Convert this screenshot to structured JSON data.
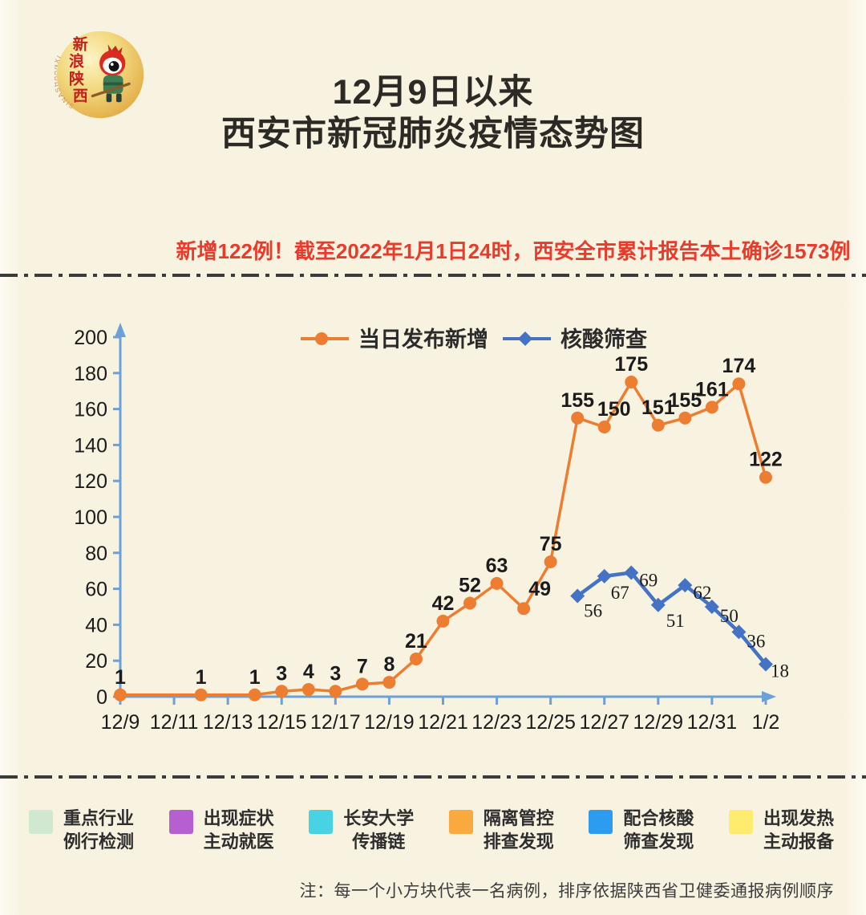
{
  "logo": {
    "name_cn": "新浪陕西",
    "name_en": "SINASHAANXI"
  },
  "header": {
    "title_line1": "12月9日以来",
    "title_line2": "西安市新冠肺炎疫情态势图",
    "subtitle": "新增122例！截至2022年1月1日24时，西安全市累计报告本土确诊1573例"
  },
  "chart_data": {
    "type": "line",
    "title": "",
    "xlabel": "",
    "ylabel": "",
    "ylim": [
      0,
      200
    ],
    "y_ticks": [
      0,
      20,
      40,
      60,
      80,
      100,
      120,
      140,
      160,
      180,
      200
    ],
    "x_tick_labels": [
      "12/9",
      "12/11",
      "12/13",
      "12/15",
      "12/17",
      "12/19",
      "12/21",
      "12/23",
      "12/25",
      "12/27",
      "12/29",
      "12/31",
      "1/2"
    ],
    "x_tick_day_indices": [
      0,
      2,
      4,
      6,
      8,
      10,
      12,
      14,
      16,
      18,
      20,
      22,
      24
    ],
    "grid": false,
    "legend_position": "top",
    "axis_color": "#6ba1d6",
    "series": [
      {
        "name": "当日发布新增",
        "color": "#ed7d31",
        "marker": "circle",
        "points": [
          {
            "date": "12/9",
            "day_index": 0,
            "value": 1
          },
          {
            "date": "12/12",
            "day_index": 3,
            "value": 1
          },
          {
            "date": "12/14",
            "day_index": 5,
            "value": 1
          },
          {
            "date": "12/15",
            "day_index": 6,
            "value": 3
          },
          {
            "date": "12/16",
            "day_index": 7,
            "value": 4
          },
          {
            "date": "12/17",
            "day_index": 8,
            "value": 3
          },
          {
            "date": "12/18",
            "day_index": 9,
            "value": 7
          },
          {
            "date": "12/19",
            "day_index": 10,
            "value": 8
          },
          {
            "date": "12/20",
            "day_index": 11,
            "value": 21
          },
          {
            "date": "12/21",
            "day_index": 12,
            "value": 42
          },
          {
            "date": "12/22",
            "day_index": 13,
            "value": 52
          },
          {
            "date": "12/23",
            "day_index": 14,
            "value": 63
          },
          {
            "date": "12/24",
            "day_index": 15,
            "value": 49
          },
          {
            "date": "12/25",
            "day_index": 16,
            "value": 75
          },
          {
            "date": "12/26",
            "day_index": 17,
            "value": 155
          },
          {
            "date": "12/27",
            "day_index": 18,
            "value": 150
          },
          {
            "date": "12/28",
            "day_index": 19,
            "value": 175
          },
          {
            "date": "12/29",
            "day_index": 20,
            "value": 151
          },
          {
            "date": "12/30",
            "day_index": 21,
            "value": 155
          },
          {
            "date": "12/31",
            "day_index": 22,
            "value": 161
          },
          {
            "date": "1/1",
            "day_index": 23,
            "value": 174
          },
          {
            "date": "1/2",
            "day_index": 24,
            "value": 122
          }
        ]
      },
      {
        "name": "核酸筛查",
        "color": "#4472c4",
        "marker": "diamond",
        "points": [
          {
            "date": "12/26",
            "day_index": 17,
            "value": 56
          },
          {
            "date": "12/27",
            "day_index": 18,
            "value": 67
          },
          {
            "date": "12/28",
            "day_index": 19,
            "value": 69
          },
          {
            "date": "12/29",
            "day_index": 20,
            "value": 51
          },
          {
            "date": "12/30",
            "day_index": 21,
            "value": 62
          },
          {
            "date": "12/31",
            "day_index": 22,
            "value": 50
          },
          {
            "date": "1/1",
            "day_index": 23,
            "value": 36
          },
          {
            "date": "1/2",
            "day_index": 24,
            "value": 18
          }
        ]
      }
    ]
  },
  "category_legend": {
    "items": [
      {
        "label": "重点行业\n例行检测",
        "color": "#cfe8cf"
      },
      {
        "label": "出现症状\n主动就医",
        "color": "#b55fd1"
      },
      {
        "label": "长安大学\n传播链",
        "color": "#49d2e2"
      },
      {
        "label": "隔离管控\n排查发现",
        "color": "#f9a93d"
      },
      {
        "label": "配合核酸\n筛查发现",
        "color": "#2d9bf0"
      },
      {
        "label": "出现发热\n主动报备",
        "color": "#ffec6e"
      }
    ]
  },
  "footnote": "注：每一个小方块代表一名病例，排序依据陕西省卫健委通报病例顺序",
  "colors": {
    "background": "#f8f2e1",
    "title": "#2d2a26",
    "subtitle_red": "#e73b2c",
    "divider": "#3b3b3b",
    "data_label": "#1b1b1b"
  }
}
